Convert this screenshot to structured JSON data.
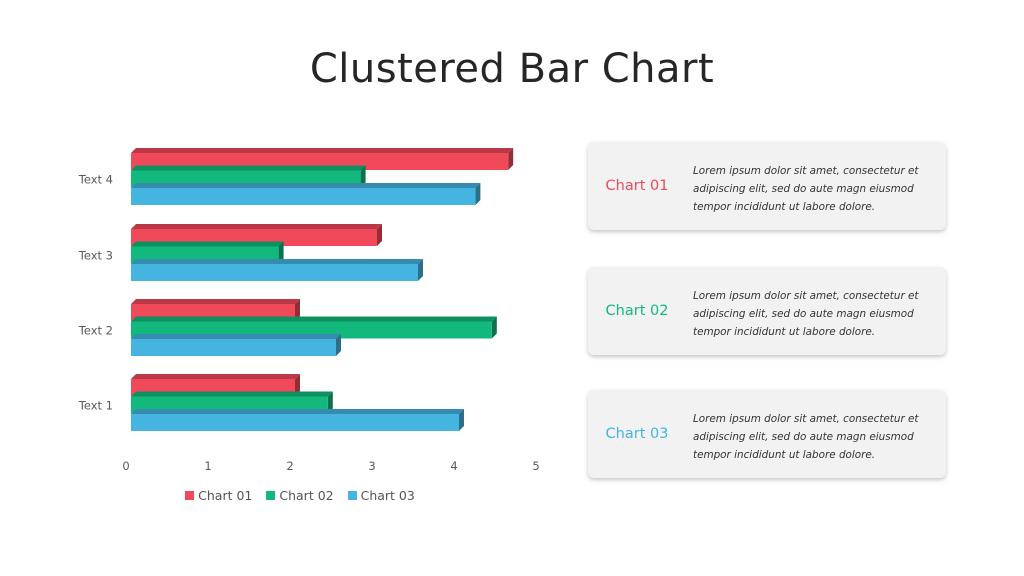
{
  "title": "Clustered Bar Chart",
  "chart_data": {
    "type": "bar",
    "orientation": "horizontal",
    "categories": [
      "Text 1",
      "Text 2",
      "Text 3",
      "Text 4"
    ],
    "series": [
      {
        "name": "Chart 01",
        "color": "#f0495a",
        "values": [
          2.0,
          2.0,
          3.0,
          4.6
        ]
      },
      {
        "name": "Chart 02",
        "color": "#12b87c",
        "values": [
          2.4,
          4.4,
          1.8,
          2.8
        ]
      },
      {
        "name": "Chart 03",
        "color": "#45b4e0",
        "values": [
          4.0,
          2.5,
          3.5,
          4.2
        ]
      }
    ],
    "xlim": [
      0,
      5
    ],
    "xticks": [
      "0",
      "1",
      "2",
      "3",
      "4",
      "5"
    ],
    "grid": false,
    "legend_position": "bottom"
  },
  "cards": [
    {
      "title": "Chart 01",
      "color": "#f0495a",
      "text": "Lorem ipsum dolor sit amet, consectetur et adipiscing elit, sed do aute magn eiusmod tempor incididunt  ut labore dolore."
    },
    {
      "title": "Chart 02",
      "color": "#12b87c",
      "text": "Lorem ipsum dolor sit amet, consectetur et adipiscing elit, sed do aute magn eiusmod tempor incididunt  ut labore dolore."
    },
    {
      "title": "Chart 03",
      "color": "#45b4e0",
      "text": "Lorem ipsum dolor sit amet, consectetur et adipiscing elit, sed do aute magn eiusmod tempor incididunt  ut labore dolore."
    }
  ]
}
